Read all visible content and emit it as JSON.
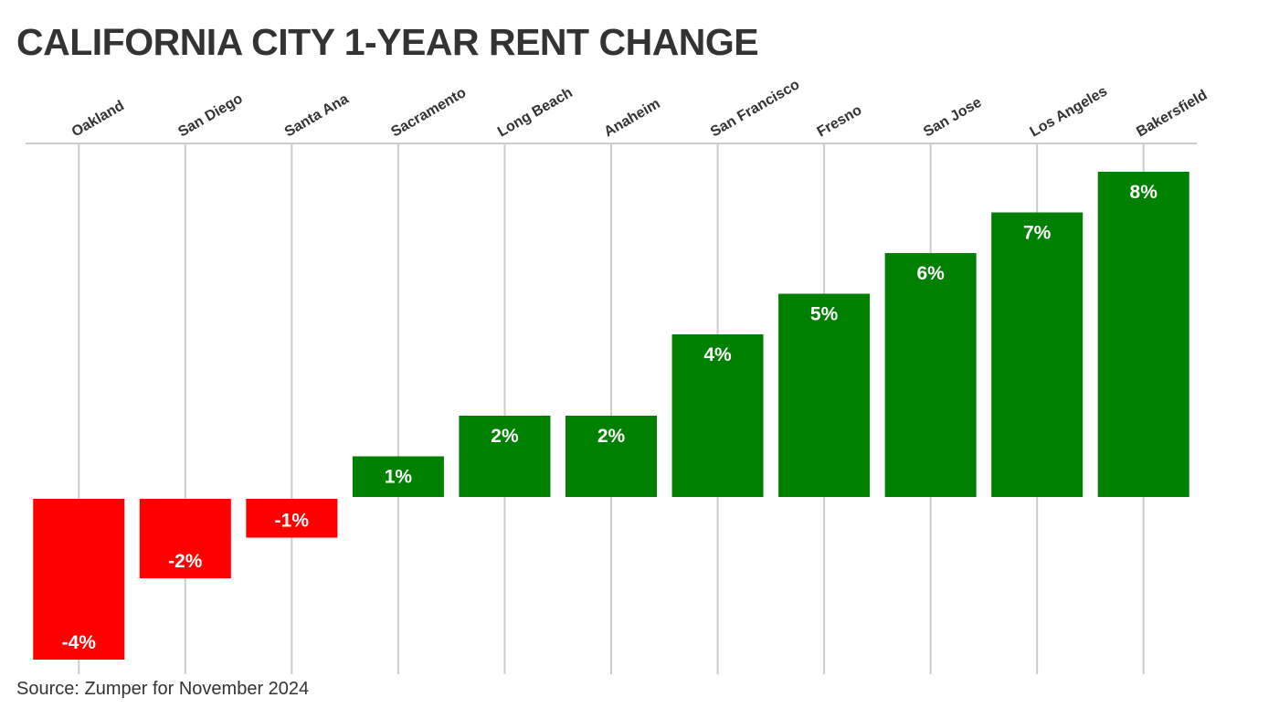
{
  "chart_data": {
    "type": "bar",
    "title": "CALIFORNIA CITY 1-YEAR RENT CHANGE",
    "source": "Source: Zumper for November 2024",
    "categories": [
      "Oakland",
      "San Diego",
      "Santa Ana",
      "Sacramento",
      "Long Beach",
      "Anaheim",
      "San Francisco",
      "Fresno",
      "San Jose",
      "Los Angeles",
      "Bakersfield"
    ],
    "values": [
      -4,
      -2,
      -1,
      1,
      2,
      2,
      4,
      5,
      6,
      7,
      8
    ],
    "value_labels": [
      "-4%",
      "-2%",
      "-1%",
      "1%",
      "2%",
      "2%",
      "4%",
      "5%",
      "6%",
      "7%",
      "8%"
    ],
    "unit": "%",
    "ylim": [
      -4,
      8.4
    ],
    "category_labels_position": "top",
    "category_label_rotation": -30,
    "grid": true,
    "colors": {
      "positive": "#008000",
      "negative": "#ff0000",
      "grid": "#cccccc",
      "text": "#333333",
      "value_label": "#ffffff"
    }
  }
}
